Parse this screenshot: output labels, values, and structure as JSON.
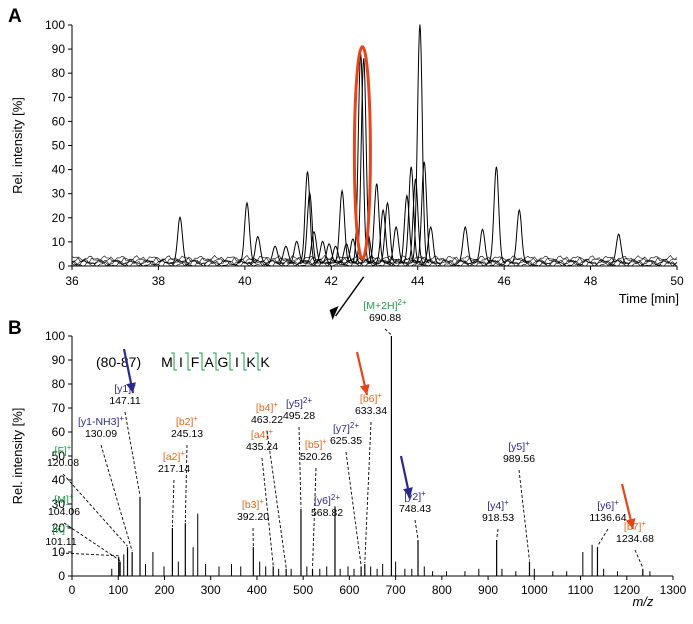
{
  "chart_data": [
    {
      "panel": "A",
      "type": "line",
      "xlabel": "Time [min]",
      "ylabel": "Rel. intensity [%]",
      "xlim": [
        36,
        50
      ],
      "ylim": [
        0,
        100
      ],
      "xticks": [
        "36",
        "38",
        "40",
        "42",
        "44",
        "46",
        "48",
        "50"
      ],
      "yticks": [
        "0",
        "10",
        "20",
        "30",
        "40",
        "50",
        "60",
        "70",
        "80",
        "90",
        "100"
      ],
      "peaks": [
        {
          "x": 38.5,
          "y": 19
        },
        {
          "x": 40.05,
          "y": 25
        },
        {
          "x": 40.3,
          "y": 11
        },
        {
          "x": 40.7,
          "y": 7
        },
        {
          "x": 40.95,
          "y": 7
        },
        {
          "x": 41.2,
          "y": 9
        },
        {
          "x": 41.45,
          "y": 38
        },
        {
          "x": 41.5,
          "y": 29
        },
        {
          "x": 41.6,
          "y": 13
        },
        {
          "x": 41.8,
          "y": 9
        },
        {
          "x": 41.95,
          "y": 8
        },
        {
          "x": 42.1,
          "y": 7
        },
        {
          "x": 42.25,
          "y": 30
        },
        {
          "x": 42.35,
          "y": 8
        },
        {
          "x": 42.5,
          "y": 10
        },
        {
          "x": 42.68,
          "y": 87
        },
        {
          "x": 42.75,
          "y": 85
        },
        {
          "x": 42.85,
          "y": 12
        },
        {
          "x": 43.05,
          "y": 33
        },
        {
          "x": 43.2,
          "y": 22
        },
        {
          "x": 43.3,
          "y": 25
        },
        {
          "x": 43.5,
          "y": 15
        },
        {
          "x": 43.75,
          "y": 28
        },
        {
          "x": 43.85,
          "y": 40
        },
        {
          "x": 43.95,
          "y": 35
        },
        {
          "x": 44.05,
          "y": 99
        },
        {
          "x": 44.15,
          "y": 42
        },
        {
          "x": 44.3,
          "y": 15
        },
        {
          "x": 45.1,
          "y": 15
        },
        {
          "x": 45.5,
          "y": 14
        },
        {
          "x": 45.82,
          "y": 40
        },
        {
          "x": 46.35,
          "y": 22
        },
        {
          "x": 48.65,
          "y": 12
        }
      ]
    },
    {
      "panel": "B",
      "type": "bar",
      "xlabel": "m/z",
      "ylabel": "Rel. intensity [%]",
      "xlim": [
        0,
        1300
      ],
      "ylim": [
        0,
        100
      ],
      "xticks": [
        "0",
        "100",
        "200",
        "300",
        "400",
        "500",
        "600",
        "700",
        "800",
        "900",
        "1000",
        "1100",
        "1200",
        "1300"
      ],
      "yticks": [
        "0",
        "10",
        "20",
        "30",
        "40",
        "50",
        "60",
        "70",
        "80",
        "90",
        "100"
      ],
      "peptide_range": "(80-87)",
      "sequence": [
        "M",
        "I",
        "F",
        "A",
        "G",
        "I",
        "K",
        "K"
      ],
      "annotated_peaks": [
        {
          "ion": "[K]",
          "sup": "+",
          "mz": "101.11",
          "x": 101.11,
          "y": 8,
          "color": "#1aa34a"
        },
        {
          "ion": "[M]",
          "sup": "+",
          "mz": "104.06",
          "x": 104.06,
          "y": 6,
          "color": "#1aa34a"
        },
        {
          "ion": "[F]",
          "sup": "+",
          "mz": "120.08",
          "x": 120.08,
          "y": 12,
          "color": "#1aa34a"
        },
        {
          "ion": "[y1-NH3]",
          "sup": "+",
          "mz": "130.09",
          "x": 130.09,
          "y": 10,
          "color": "#2b2a8c"
        },
        {
          "ion": "[y1]",
          "sup": "+",
          "mz": "147.11",
          "x": 147.11,
          "y": 33,
          "color": "#2b2a8c"
        },
        {
          "ion": "[a2]",
          "sup": "+",
          "mz": "217.14",
          "x": 217.14,
          "y": 20,
          "color": "#e8671a"
        },
        {
          "ion": "[b2]",
          "sup": "+",
          "mz": "245.13",
          "x": 245.13,
          "y": 22,
          "color": "#e8671a"
        },
        {
          "ion": "[b3]",
          "sup": "+",
          "mz": "392.20",
          "x": 392.2,
          "y": 12,
          "color": "#e8671a"
        },
        {
          "ion": "[a4]",
          "sup": "+",
          "mz": "435.24",
          "x": 435.24,
          "y": 4,
          "color": "#e8671a"
        },
        {
          "ion": "[b4]",
          "sup": "+",
          "mz": "463.22",
          "x": 463.22,
          "y": 3,
          "color": "#e8671a"
        },
        {
          "ion": "[y5]",
          "sup": "2+",
          "mz": "495.28",
          "x": 495.28,
          "y": 28,
          "color": "#2b2a8c"
        },
        {
          "ion": "[b5]",
          "sup": "+",
          "mz": "520.26",
          "x": 520.26,
          "y": 3,
          "color": "#e8671a"
        },
        {
          "ion": "[y6]",
          "sup": "2+",
          "mz": "568.82",
          "x": 568.82,
          "y": 29,
          "color": "#2b2a8c"
        },
        {
          "ion": "[y7]",
          "sup": "2+",
          "mz": "625.35",
          "x": 625.35,
          "y": 4,
          "color": "#2b2a8c"
        },
        {
          "ion": "[b6]",
          "sup": "+",
          "mz": "633.34",
          "x": 633.34,
          "y": 5,
          "color": "#e8671a"
        },
        {
          "ion": "[M+2H]",
          "sup": "2+",
          "mz": "690.88",
          "x": 690.88,
          "y": 100,
          "color": "#1aa34a"
        },
        {
          "ion": "[y2]",
          "sup": "+",
          "mz": "748.43",
          "x": 748.43,
          "y": 15,
          "color": "#2b2a8c"
        },
        {
          "ion": "[y4]",
          "sup": "+",
          "mz": "918.53",
          "x": 918.53,
          "y": 15,
          "color": "#2b2a8c"
        },
        {
          "ion": "[y5]",
          "sup": "+",
          "mz": "989.56",
          "x": 989.56,
          "y": 6,
          "color": "#2b2a8c"
        },
        {
          "ion": "[y6]",
          "sup": "+",
          "mz": "1136.64",
          "x": 1136.64,
          "y": 12,
          "color": "#2b2a8c"
        },
        {
          "ion": "[b7]",
          "sup": "+",
          "mz": "1234.68",
          "x": 1234.68,
          "y": 3,
          "color": "#e8671a"
        }
      ],
      "other_peaks": [
        {
          "x": 86,
          "y": 3
        },
        {
          "x": 112,
          "y": 9
        },
        {
          "x": 159,
          "y": 5
        },
        {
          "x": 175,
          "y": 10
        },
        {
          "x": 199,
          "y": 4
        },
        {
          "x": 230,
          "y": 6
        },
        {
          "x": 262,
          "y": 12
        },
        {
          "x": 272,
          "y": 26
        },
        {
          "x": 289,
          "y": 5
        },
        {
          "x": 318,
          "y": 4
        },
        {
          "x": 345,
          "y": 5
        },
        {
          "x": 365,
          "y": 4
        },
        {
          "x": 406,
          "y": 6
        },
        {
          "x": 419,
          "y": 4
        },
        {
          "x": 447,
          "y": 3
        },
        {
          "x": 474,
          "y": 3
        },
        {
          "x": 508,
          "y": 4
        },
        {
          "x": 536,
          "y": 3
        },
        {
          "x": 551,
          "y": 4
        },
        {
          "x": 580,
          "y": 3
        },
        {
          "x": 597,
          "y": 4
        },
        {
          "x": 610,
          "y": 3
        },
        {
          "x": 646,
          "y": 4
        },
        {
          "x": 660,
          "y": 3
        },
        {
          "x": 672,
          "y": 5
        },
        {
          "x": 700,
          "y": 6
        },
        {
          "x": 720,
          "y": 3
        },
        {
          "x": 735,
          "y": 3
        },
        {
          "x": 762,
          "y": 4
        },
        {
          "x": 780,
          "y": 2
        },
        {
          "x": 810,
          "y": 2
        },
        {
          "x": 850,
          "y": 2
        },
        {
          "x": 880,
          "y": 3
        },
        {
          "x": 930,
          "y": 3
        },
        {
          "x": 960,
          "y": 2
        },
        {
          "x": 1000,
          "y": 3
        },
        {
          "x": 1040,
          "y": 2
        },
        {
          "x": 1070,
          "y": 2
        },
        {
          "x": 1105,
          "y": 10
        },
        {
          "x": 1125,
          "y": 13
        },
        {
          "x": 1150,
          "y": 3
        },
        {
          "x": 1180,
          "y": 2
        },
        {
          "x": 1250,
          "y": 2
        }
      ]
    }
  ],
  "colors": {
    "highlight": "#e8441a",
    "y_ion": "#2b2a8c",
    "b_ion": "#e8671a",
    "other_ion": "#1aa34a"
  }
}
